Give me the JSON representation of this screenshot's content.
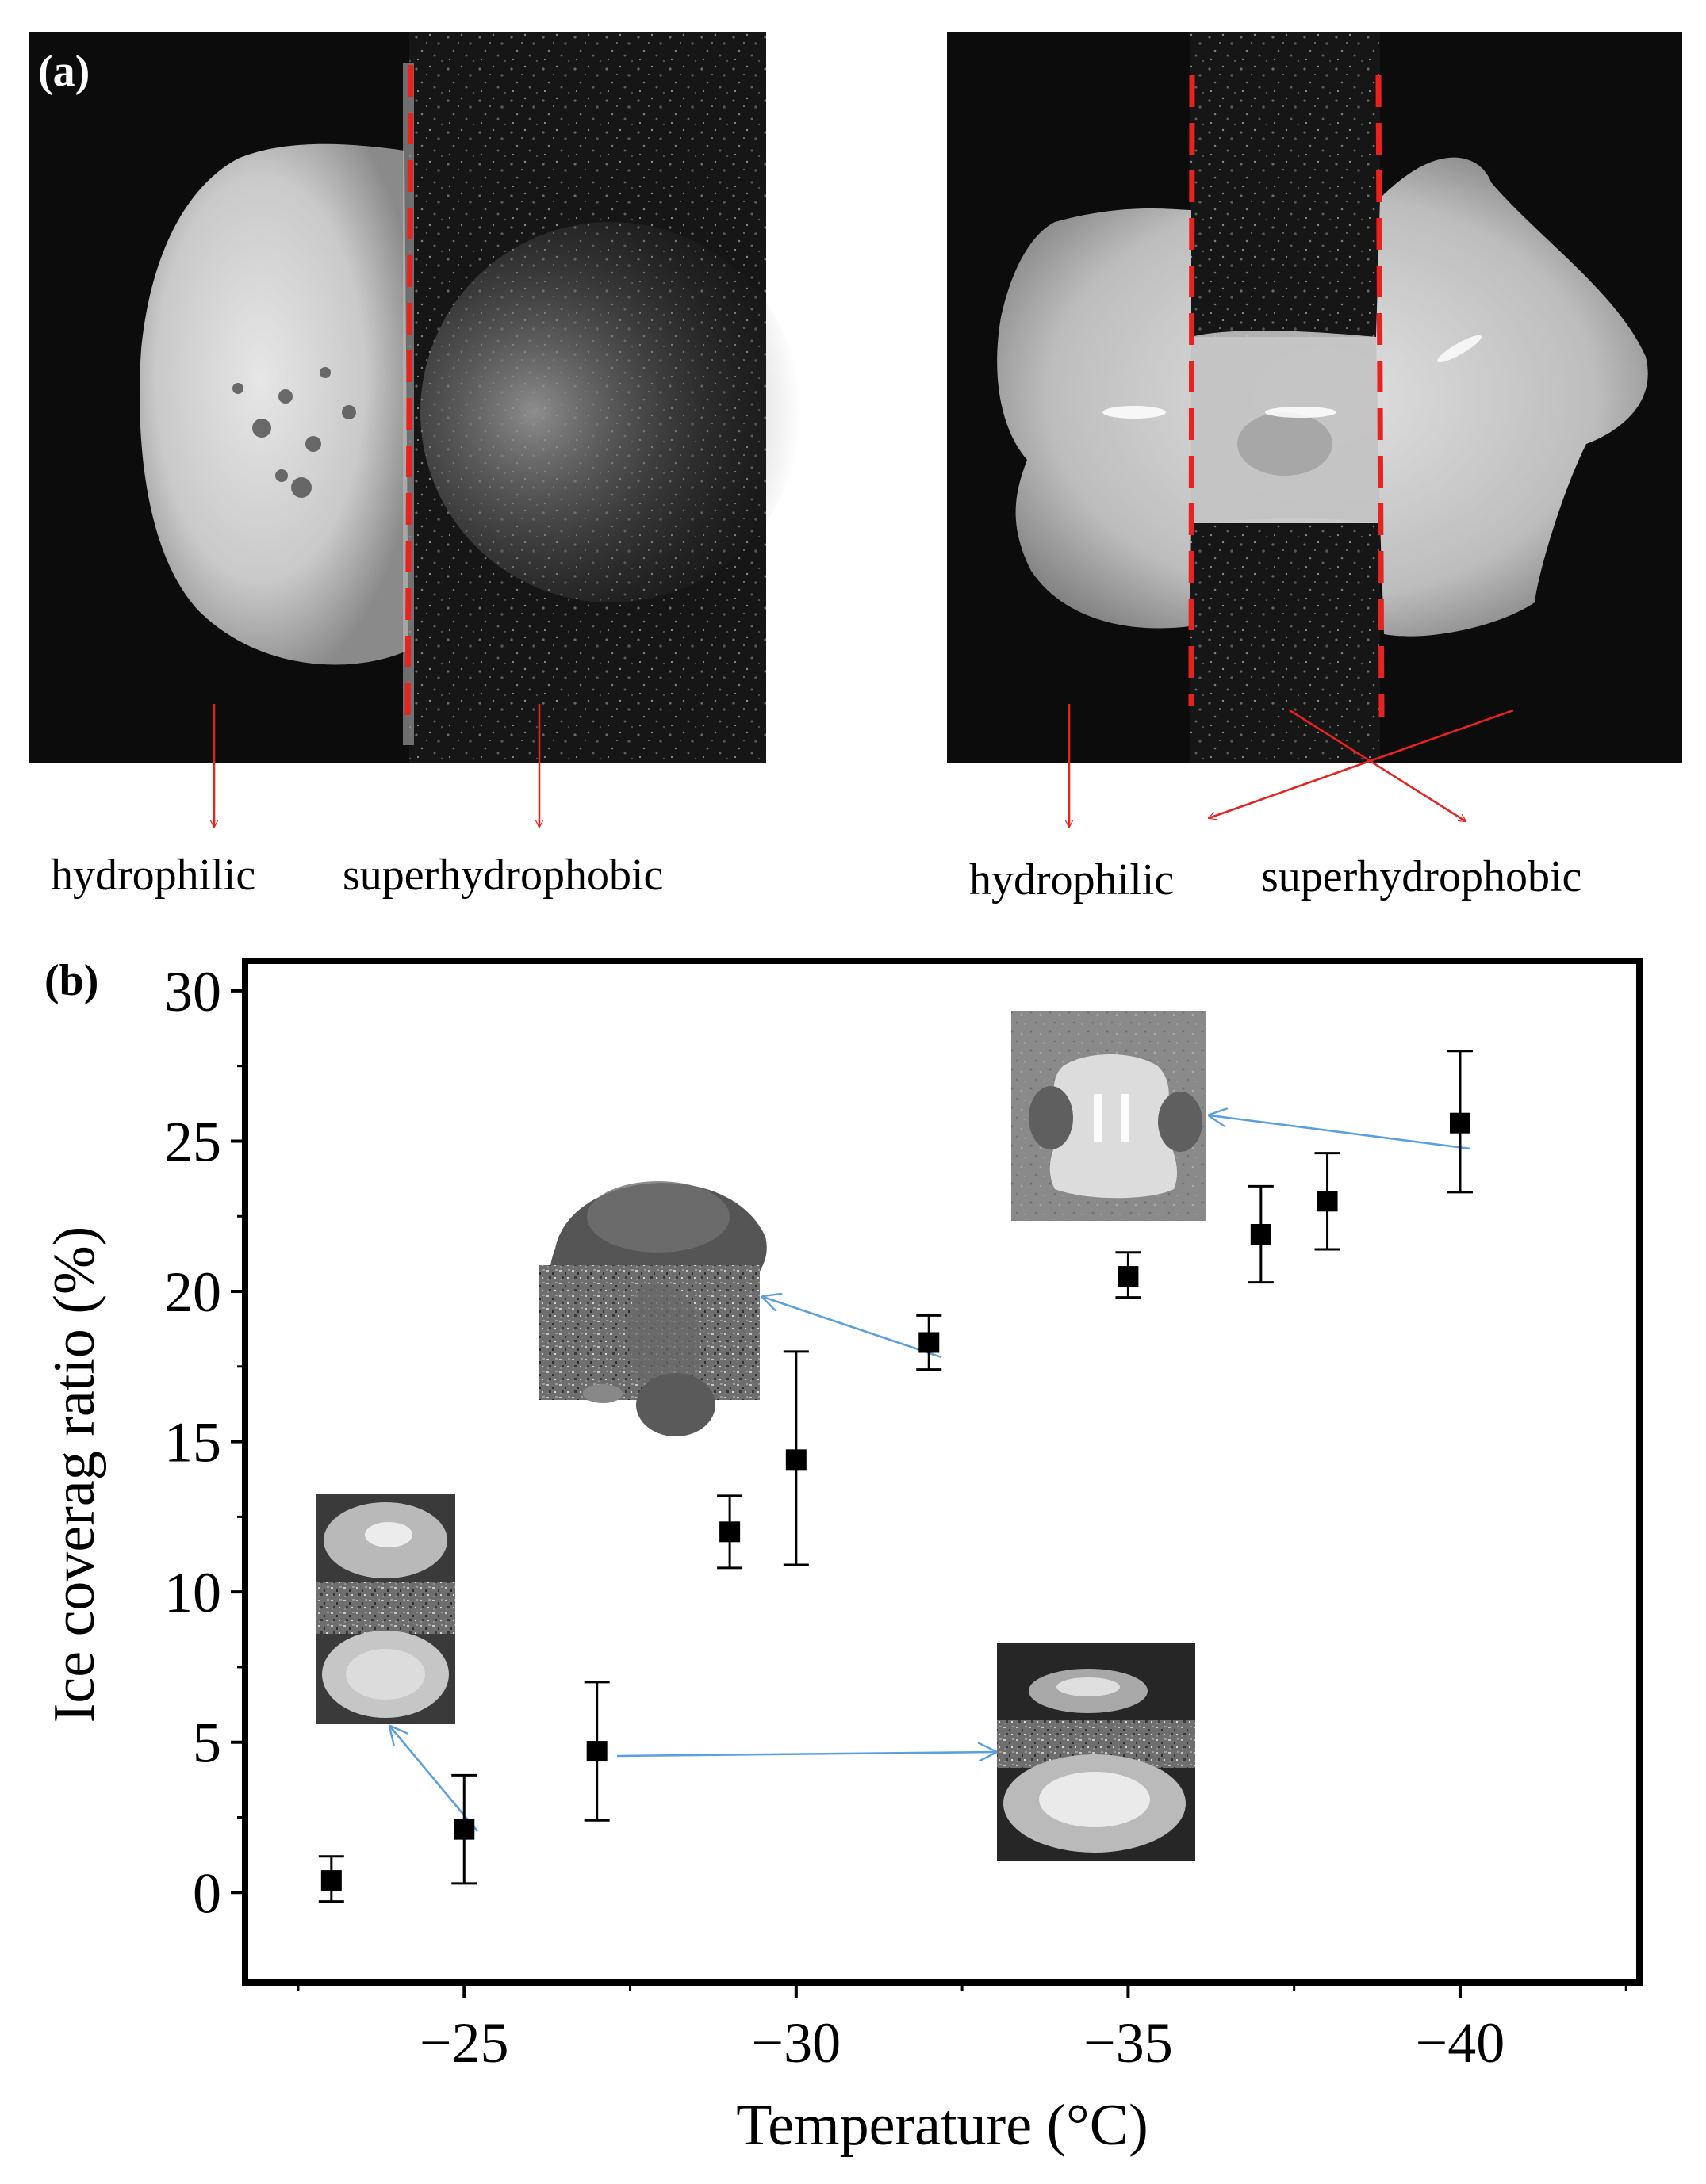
{
  "panel_a": {
    "label": "(a)",
    "left_photo": {
      "labels": [
        "hydrophilic",
        "superhydrophobic"
      ]
    },
    "right_photo": {
      "labels": [
        "hydrophilic",
        "superhydrophobic"
      ]
    }
  },
  "panel_b": {
    "label": "(b)"
  },
  "colors": {
    "boundary_line": "#e8221f",
    "annotation_arrow": "#e8221f",
    "inset_arrow": "#5aa0e0",
    "marker": "#000000"
  },
  "chart_data": {
    "type": "scatter",
    "xlabel": "Temperature (°C)",
    "ylabel": "Ice coverag ratio (%)",
    "xlim": [
      -21.7,
      -42.7
    ],
    "ylim": [
      -3,
      31
    ],
    "x_ticks": [
      -25,
      -30,
      -35,
      -40
    ],
    "x_tick_labels": [
      "−25",
      "−30",
      "−35",
      "−40"
    ],
    "y_ticks": [
      0,
      5,
      10,
      15,
      20,
      25,
      30
    ],
    "y_tick_labels": [
      "0",
      "5",
      "10",
      "15",
      "20",
      "25",
      "30"
    ],
    "grid": false,
    "legend": "none",
    "points": [
      {
        "x": -23,
        "y": 0.4,
        "err_low": 0.7,
        "err_high": 0.8
      },
      {
        "x": -25,
        "y": 2.1,
        "err_low": 1.8,
        "err_high": 1.8
      },
      {
        "x": -27,
        "y": 4.7,
        "err_low": 2.3,
        "err_high": 2.3
      },
      {
        "x": -29,
        "y": 12.0,
        "err_low": 1.2,
        "err_high": 1.2
      },
      {
        "x": -30,
        "y": 14.4,
        "err_low": 3.5,
        "err_high": 3.6
      },
      {
        "x": -32,
        "y": 18.3,
        "err_low": 0.9,
        "err_high": 0.9
      },
      {
        "x": -35,
        "y": 20.5,
        "err_low": 0.7,
        "err_high": 0.8
      },
      {
        "x": -37,
        "y": 21.9,
        "err_low": 1.6,
        "err_high": 1.6
      },
      {
        "x": -38,
        "y": 23.0,
        "err_low": 1.6,
        "err_high": 1.6
      },
      {
        "x": -40,
        "y": 25.6,
        "err_low": 2.3,
        "err_high": 2.4
      }
    ],
    "insets": [
      {
        "image": "two-separate-droplets-photo",
        "linked_point": -25
      },
      {
        "image": "partially-bridged-droplets-photo",
        "linked_point": -27
      },
      {
        "image": "mushroom-shaped-ice-photo",
        "linked_point": -32
      },
      {
        "image": "fully-bridged-ice-photo",
        "linked_point": -40
      }
    ]
  }
}
